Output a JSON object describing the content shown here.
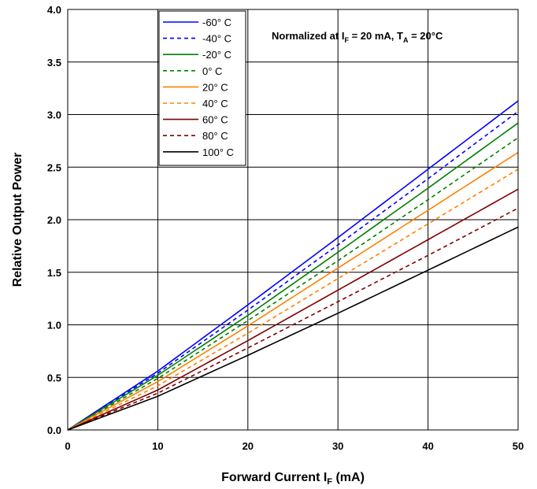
{
  "chart_data": {
    "type": "line",
    "title": "",
    "annotation": {
      "prefix": "Normalized at I",
      "sub1": "F",
      "mid": " = 20 mA, T",
      "sub2": "A",
      "suffix": " = 20°C"
    },
    "xlabel": {
      "main": "Forward Current I",
      "sub": "F",
      "suffix": " (mA)"
    },
    "ylabel": "Relative Output Power",
    "xlim": [
      0,
      50
    ],
    "ylim": [
      0,
      4.0
    ],
    "x_ticks": [
      "0",
      "10",
      "20",
      "30",
      "40",
      "50"
    ],
    "y_ticks": [
      "0.0",
      "0.5",
      "1.0",
      "1.5",
      "2.0",
      "2.5",
      "3.0",
      "3.5",
      "4.0"
    ],
    "grid": true,
    "legend_position": "top-left-center",
    "x": [
      0,
      10,
      20,
      30,
      40,
      50
    ],
    "series": [
      {
        "name": "-60° C",
        "color": "#0000ff",
        "dash": "solid",
        "values": [
          0,
          0.56,
          1.19,
          1.83,
          2.48,
          3.13
        ]
      },
      {
        "name": "-40° C",
        "color": "#0000ff",
        "dash": "dashed",
        "values": [
          0,
          0.54,
          1.14,
          1.76,
          2.39,
          3.03
        ]
      },
      {
        "name": "-20° C",
        "color": "#008000",
        "dash": "solid",
        "values": [
          0,
          0.52,
          1.09,
          1.69,
          2.3,
          2.92
        ]
      },
      {
        "name": "0° C",
        "color": "#008000",
        "dash": "dashed",
        "values": [
          0,
          0.49,
          1.04,
          1.61,
          2.19,
          2.78
        ]
      },
      {
        "name": "20° C",
        "color": "#ff8000",
        "dash": "solid",
        "values": [
          0,
          0.46,
          0.99,
          1.54,
          2.09,
          2.64
        ]
      },
      {
        "name": "40° C",
        "color": "#ff8000",
        "dash": "dashed",
        "values": [
          0,
          0.42,
          0.92,
          1.44,
          1.96,
          2.48
        ]
      },
      {
        "name": "60° C",
        "color": "#800000",
        "dash": "solid",
        "values": [
          0,
          0.38,
          0.85,
          1.33,
          1.81,
          2.29
        ]
      },
      {
        "name": "80° C",
        "color": "#800000",
        "dash": "dashed",
        "values": [
          0,
          0.35,
          0.78,
          1.22,
          1.66,
          2.11
        ]
      },
      {
        "name": "100° C",
        "color": "#000000",
        "dash": "solid",
        "values": [
          0,
          0.32,
          0.71,
          1.11,
          1.52,
          1.93
        ]
      }
    ]
  }
}
